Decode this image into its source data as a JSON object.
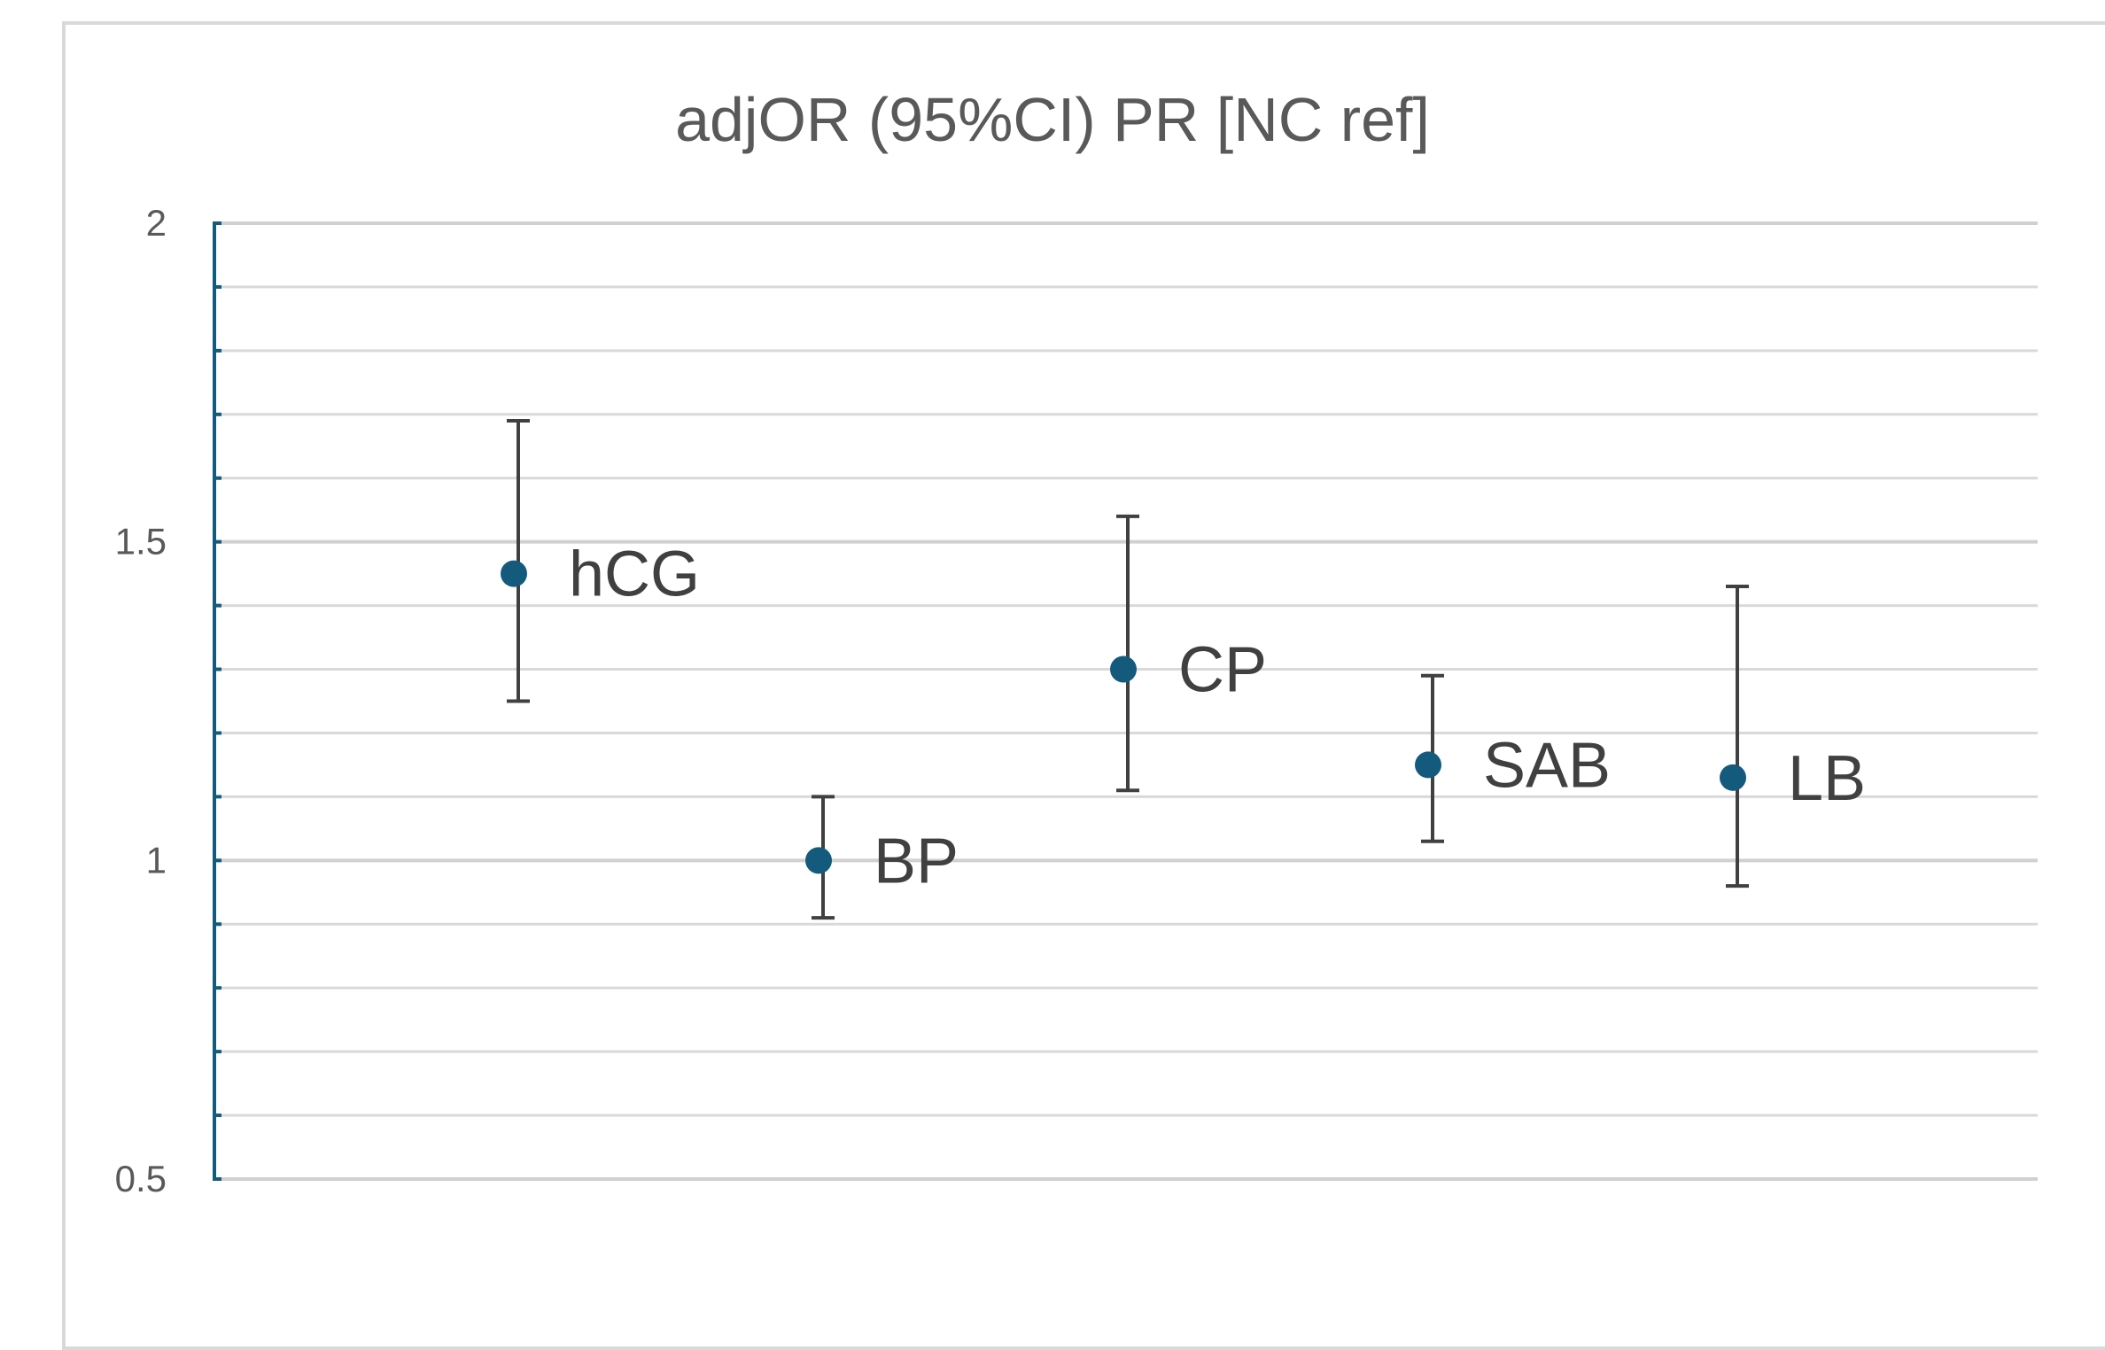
{
  "chart_data": {
    "type": "scatter",
    "title": "adjOR (95%CI) PR [NC ref]",
    "xlabel": "",
    "ylabel": "",
    "ylim": [
      0.5,
      2
    ],
    "y_major_ticks": [
      0.5,
      1,
      1.5,
      2
    ],
    "y_tick_labels": [
      "0.5",
      "1",
      "1.5",
      "2"
    ],
    "y_minor_step": 0.1,
    "grid": true,
    "legend": "none",
    "categories": [
      "hCG",
      "BP",
      "CP",
      "SAB",
      "LB"
    ],
    "series": [
      {
        "values": [
          1.45,
          1.0,
          1.3,
          1.15,
          1.13
        ],
        "ci_lower": [
          1.25,
          0.91,
          1.11,
          1.03,
          0.96
        ],
        "ci_upper": [
          1.69,
          1.1,
          1.54,
          1.29,
          1.43
        ],
        "point_labels": [
          "hCG",
          "BP",
          "CP",
          "SAB",
          "LB"
        ]
      }
    ],
    "colors": {
      "marker": "#145a7c",
      "error_bar": "#404040",
      "axis": "#145a7c",
      "gridline": "#d9d9d9",
      "major_gridline": "#d0d0d0",
      "text": "#595959",
      "label_text": "#404040"
    }
  }
}
